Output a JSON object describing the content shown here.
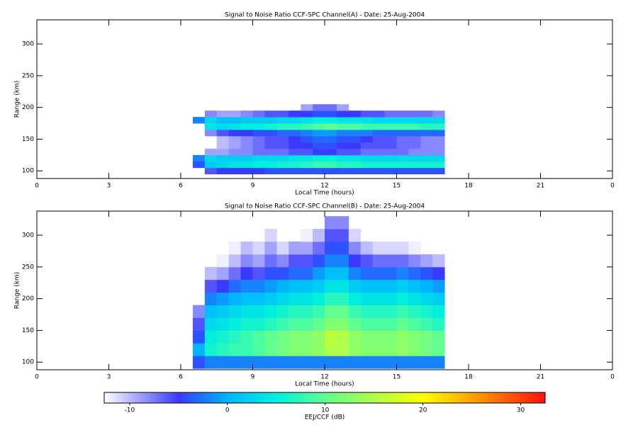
{
  "chart_data": [
    {
      "type": "heatmap",
      "title": "Signal to Noise Ratio CCF-SPC Channel(A) - Date: 25-Aug-2004",
      "xlabel": "Local Time (hours)",
      "ylabel": "Range (km)",
      "xlim": [
        0,
        24
      ],
      "ylim": [
        88,
        338
      ],
      "xticks": [
        0,
        3,
        6,
        9,
        12,
        15,
        18,
        21,
        {
          "value": 24,
          "label": "0"
        }
      ],
      "yticks": [
        100,
        150,
        200,
        250,
        300
      ],
      "x_bins": [
        6.5,
        7,
        7.5,
        8,
        8.5,
        9,
        9.5,
        10,
        10.5,
        11,
        11.5,
        12,
        12.5,
        13,
        13.5,
        14,
        14.5,
        15,
        15.5,
        16,
        16.5,
        17
      ],
      "y_bins": [
        95,
        105,
        115,
        125,
        135,
        145,
        155,
        165,
        175,
        185,
        195,
        205
      ],
      "z": [
        [
          null,
          -6,
          -5,
          -5,
          -5,
          -5,
          -4,
          -4,
          -4,
          -4,
          -4,
          -4,
          -4,
          -4,
          -4,
          -4,
          -4,
          -4,
          -4,
          -4,
          -4
        ],
        [
          -4,
          2,
          3,
          4,
          4,
          5,
          5,
          6,
          6,
          7,
          8,
          8,
          7,
          7,
          6,
          6,
          6,
          6,
          6,
          6,
          6
        ],
        [
          -2,
          3,
          2,
          2,
          2,
          3,
          3,
          3,
          4,
          4,
          5,
          5,
          4,
          4,
          3,
          3,
          3,
          3,
          3,
          3,
          3
        ],
        [
          null,
          -9,
          -9,
          -8,
          -8,
          -7,
          -7,
          -7,
          -6,
          -6,
          -5,
          -5,
          -6,
          -6,
          -7,
          -7,
          -7,
          -7,
          -8,
          -8,
          -8
        ],
        [
          null,
          null,
          -10,
          -9,
          -8,
          -7,
          -6,
          -6,
          -5,
          -5,
          -4,
          -4,
          -5,
          -5,
          -6,
          -6,
          -6,
          -7,
          -7,
          -8,
          -8
        ],
        [
          null,
          null,
          -10,
          -9,
          -8,
          -7,
          -6,
          -6,
          -5,
          -4,
          -3,
          -3,
          -4,
          -4,
          -5,
          -6,
          -6,
          -7,
          -7,
          -8,
          -8
        ],
        [
          null,
          -8,
          -6,
          -5,
          -5,
          -4,
          -4,
          -3,
          -3,
          -2,
          -1,
          -1,
          -2,
          -2,
          -2,
          -3,
          -3,
          -3,
          -3,
          -3,
          -3
        ],
        [
          null,
          4,
          3,
          4,
          5,
          5,
          6,
          7,
          7,
          8,
          9,
          10,
          9,
          9,
          8,
          8,
          8,
          8,
          8,
          7,
          7
        ],
        [
          -2,
          3,
          1,
          1,
          2,
          2,
          2,
          3,
          3,
          4,
          5,
          5,
          4,
          4,
          4,
          3,
          3,
          3,
          3,
          3,
          3
        ],
        [
          null,
          -8,
          -9,
          -9,
          -8,
          -7,
          -6,
          -6,
          -5,
          -5,
          -4,
          -4,
          -5,
          -5,
          -6,
          -6,
          -7,
          -7,
          -7,
          -7,
          -8
        ],
        [
          null,
          null,
          null,
          null,
          null,
          null,
          null,
          null,
          null,
          -9,
          -7,
          -7,
          -9,
          null,
          null,
          null,
          null,
          null,
          null,
          null,
          null
        ]
      ]
    },
    {
      "type": "heatmap",
      "title": "Signal to Noise Ratio CCF-SPC Channel(B) - Date: 25-Aug-2004",
      "xlabel": "Local Time (hours)",
      "ylabel": "Range (km)",
      "xlim": [
        0,
        24
      ],
      "ylim": [
        88,
        338
      ],
      "xticks": [
        0,
        3,
        6,
        9,
        12,
        15,
        18,
        21,
        {
          "value": 24,
          "label": "0"
        }
      ],
      "yticks": [
        100,
        150,
        200,
        250,
        300
      ],
      "x_bins": [
        6.5,
        7,
        7.5,
        8,
        8.5,
        9,
        9.5,
        10,
        10.5,
        11,
        11.5,
        12,
        12.5,
        13,
        13.5,
        14,
        14.5,
        15,
        15.5,
        16,
        16.5,
        17
      ],
      "y_bins": [
        90,
        110,
        130,
        150,
        170,
        190,
        210,
        230,
        250,
        270,
        290,
        310,
        330
      ],
      "z": [
        [
          -4,
          -2,
          -2,
          -2,
          -2,
          -2,
          -2,
          -2,
          -2,
          -2,
          -2,
          -2,
          -2,
          -2,
          -2,
          -2,
          -2,
          -2,
          -2,
          -2,
          -2
        ],
        [
          0,
          6,
          7,
          8,
          8,
          9,
          10,
          11,
          12,
          12,
          13,
          15,
          15,
          13,
          12,
          12,
          12,
          13,
          12,
          11,
          10
        ],
        [
          -4,
          5,
          6,
          7,
          8,
          9,
          10,
          11,
          12,
          12,
          13,
          16,
          15,
          13,
          12,
          12,
          12,
          13,
          12,
          11,
          10
        ],
        [
          -6,
          3,
          4,
          5,
          6,
          6,
          7,
          8,
          9,
          9,
          10,
          12,
          12,
          10,
          9,
          9,
          9,
          10,
          9,
          8,
          7
        ],
        [
          -8,
          1,
          2,
          3,
          4,
          4,
          5,
          6,
          7,
          7,
          8,
          10,
          10,
          8,
          7,
          7,
          7,
          8,
          7,
          6,
          5
        ],
        [
          null,
          -2,
          -1,
          0,
          1,
          1,
          2,
          3,
          4,
          4,
          5,
          7,
          7,
          5,
          4,
          4,
          4,
          5,
          4,
          3,
          2
        ],
        [
          null,
          -6,
          -5,
          -3,
          -2,
          -2,
          -1,
          0,
          1,
          1,
          2,
          4,
          4,
          2,
          1,
          1,
          1,
          2,
          1,
          0,
          -1
        ],
        [
          null,
          -10,
          -9,
          -7,
          -5,
          -6,
          -4,
          -4,
          -3,
          -3,
          -1,
          1,
          1,
          -2,
          -3,
          -3,
          -3,
          -2,
          -3,
          -4,
          -5
        ],
        [
          null,
          null,
          -12,
          -10,
          -8,
          -9,
          -7,
          -8,
          -6,
          -6,
          -4,
          -2,
          -2,
          -5,
          -6,
          -7,
          -7,
          -7,
          -8,
          -9,
          -10
        ],
        [
          null,
          null,
          null,
          -12,
          -10,
          -11,
          -9,
          -11,
          -9,
          -9,
          -7,
          -4,
          -4,
          -8,
          -10,
          -11,
          -11,
          -11,
          -12,
          null,
          null
        ],
        [
          null,
          null,
          null,
          null,
          null,
          null,
          -11,
          null,
          null,
          -12,
          -10,
          -6,
          -6,
          -11,
          null,
          null,
          null,
          null,
          null,
          null,
          null
        ],
        [
          null,
          null,
          null,
          null,
          null,
          null,
          null,
          null,
          null,
          null,
          null,
          -8,
          -8,
          null,
          null,
          null,
          null,
          null,
          null,
          null,
          null
        ]
      ]
    }
  ],
  "colorbar": {
    "label": "EEJ/CCF (dB)",
    "clim": [
      -12.6,
      32.5
    ],
    "ticks": [
      -10,
      0,
      10,
      20,
      30
    ],
    "colorscale": [
      [
        -12.6,
        "#ffffff"
      ],
      [
        -5,
        "#3a3aff"
      ],
      [
        0,
        "#00b4ff"
      ],
      [
        5,
        "#00f0e0"
      ],
      [
        10,
        "#60ff90"
      ],
      [
        20,
        "#ffff00"
      ],
      [
        26,
        "#ff9000"
      ],
      [
        32.5,
        "#ff1010"
      ]
    ]
  }
}
